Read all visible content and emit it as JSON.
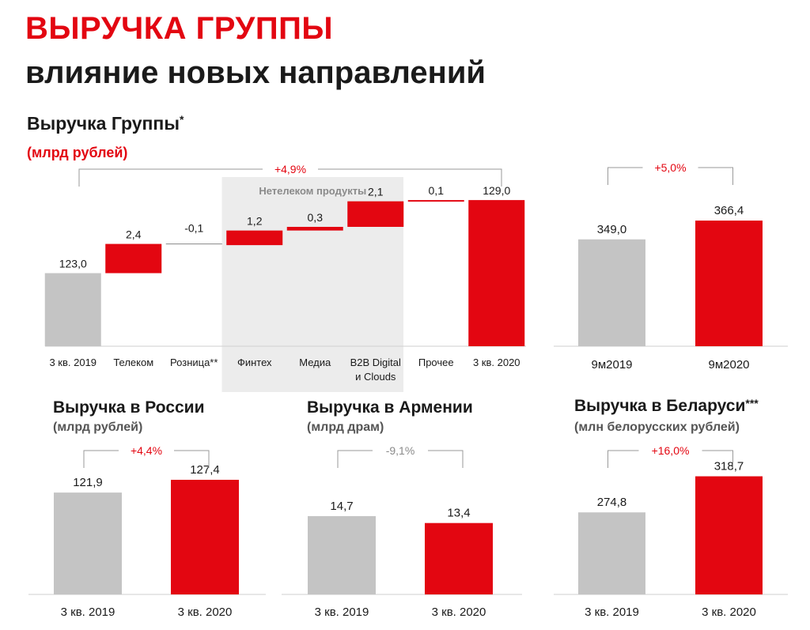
{
  "header": {
    "title": "ВЫРУЧКА ГРУППЫ",
    "subtitle": "влияние новых направлений"
  },
  "group_section": {
    "title": "Выручка Группы",
    "title_mark": "*",
    "unit": "(млрд рублей)"
  },
  "russia_section": {
    "title": "Выручка в России",
    "unit": "(млрд рублей)"
  },
  "armenia_section": {
    "title": "Выручка в Армении",
    "unit": "(млрд драм)"
  },
  "belarus_section": {
    "title": "Выручка в Беларуси",
    "title_mark": "***",
    "unit": "(млн белорусских рублей)"
  },
  "colors": {
    "red": "#e30611",
    "gray": "#c4c4c4",
    "shade": "#ececec",
    "axis": "#cfcfcf",
    "bracket": "#9a9a9a"
  },
  "chart_data": [
    {
      "id": "group_q3",
      "type": "waterfall",
      "title": "Выручка Группы",
      "unit": "(млрд рублей)",
      "categories": [
        "3 кв. 2019",
        "Телеком",
        "Розница**",
        "Финтех",
        "Медиа",
        "B2B Digital и Clouds",
        "Прочее",
        "3 кв. 2020"
      ],
      "category_lines": [
        [
          "3 кв. 2019"
        ],
        [
          "Телеком"
        ],
        [
          "Розница**"
        ],
        [
          "Финтех"
        ],
        [
          "Медиа"
        ],
        [
          "B2B Digital",
          "и Clouds"
        ],
        [
          "Прочее"
        ],
        [
          "3 кв. 2020"
        ]
      ],
      "values": [
        123.0,
        2.4,
        -0.1,
        1.2,
        0.3,
        2.1,
        0.1,
        129.0
      ],
      "labels": [
        "123,0",
        "2,4",
        "-0,1",
        "1,2",
        "0,3",
        "2,1",
        "0,1",
        "129,0"
      ],
      "kinds": [
        "total",
        "delta",
        "delta",
        "delta",
        "delta",
        "delta",
        "delta",
        "total"
      ],
      "growth_label": "+4,9%",
      "highlight": {
        "label": "Нетелеком продукты",
        "from": 3,
        "to": 5
      },
      "ylim": [
        117,
        130.5
      ]
    },
    {
      "id": "group_9m",
      "type": "bar",
      "categories": [
        "9м2019",
        "9м2020"
      ],
      "values": [
        349.0,
        366.4
      ],
      "labels": [
        "349,0",
        "366,4"
      ],
      "growth_label": "+5,0%",
      "growth_color": "red",
      "ylim": [
        250,
        395
      ]
    },
    {
      "id": "russia",
      "type": "bar",
      "title": "Выручка в России",
      "unit": "(млрд рублей)",
      "categories": [
        "3 кв. 2019",
        "3 кв. 2020"
      ],
      "values": [
        121.9,
        127.4
      ],
      "labels": [
        "121,9",
        "127,4"
      ],
      "growth_label": "+4,4%",
      "growth_color": "red",
      "ylim": [
        78,
        140
      ]
    },
    {
      "id": "armenia",
      "type": "bar",
      "title": "Выручка в Армении",
      "unit": "(млрд драм)",
      "categories": [
        "3 кв. 2019",
        "3 кв. 2020"
      ],
      "values": [
        14.7,
        13.4
      ],
      "labels": [
        "14,7",
        "13,4"
      ],
      "growth_label": "-9,1%",
      "growth_color": "gray",
      "ylim": [
        0,
        27
      ]
    },
    {
      "id": "belarus",
      "type": "bar",
      "title": "Выручка в Беларуси",
      "unit": "(млн белорусских рублей)",
      "categories": [
        "3 кв. 2019",
        "3 кв. 2020"
      ],
      "values": [
        274.8,
        318.7
      ],
      "labels": [
        "274,8",
        "318,7"
      ],
      "growth_label": "+16,0%",
      "growth_color": "red",
      "ylim": [
        175,
        350
      ]
    }
  ]
}
